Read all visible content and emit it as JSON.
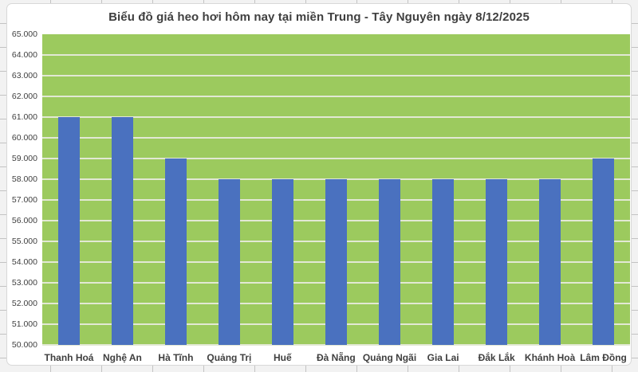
{
  "chart_data": {
    "type": "bar",
    "title": "Biểu đồ giá heo hơi hôm nay tại miền Trung - Tây Nguyên ngày 8/12/2025",
    "categories": [
      "Thanh Hoá",
      "Nghệ An",
      "Hà Tĩnh",
      "Quảng Trị",
      "Huế",
      "Đà Nẵng",
      "Quảng Ngãi",
      "Gia Lai",
      "Đắk Lắk",
      "Khánh Hoà",
      "Lâm Đồng"
    ],
    "values": [
      61000,
      61000,
      59000,
      58000,
      58000,
      58000,
      58000,
      58000,
      58000,
      58000,
      59000
    ],
    "ylim": [
      50000,
      65000
    ],
    "ytick_step": 1000,
    "y_tick_labels": [
      "65.000",
      "64.000",
      "63.000",
      "62.000",
      "61.000",
      "60.000",
      "59.000",
      "58.000",
      "57.000",
      "56.000",
      "55.000",
      "54.000",
      "53.000",
      "52.000",
      "51.000",
      "50.000"
    ],
    "grid": true,
    "legend": "none",
    "colors": {
      "bar": "#4a71bf",
      "plot_bg": "#9cca5e",
      "gridline": "#e2e8d4",
      "text": "#3f3f3f"
    }
  }
}
